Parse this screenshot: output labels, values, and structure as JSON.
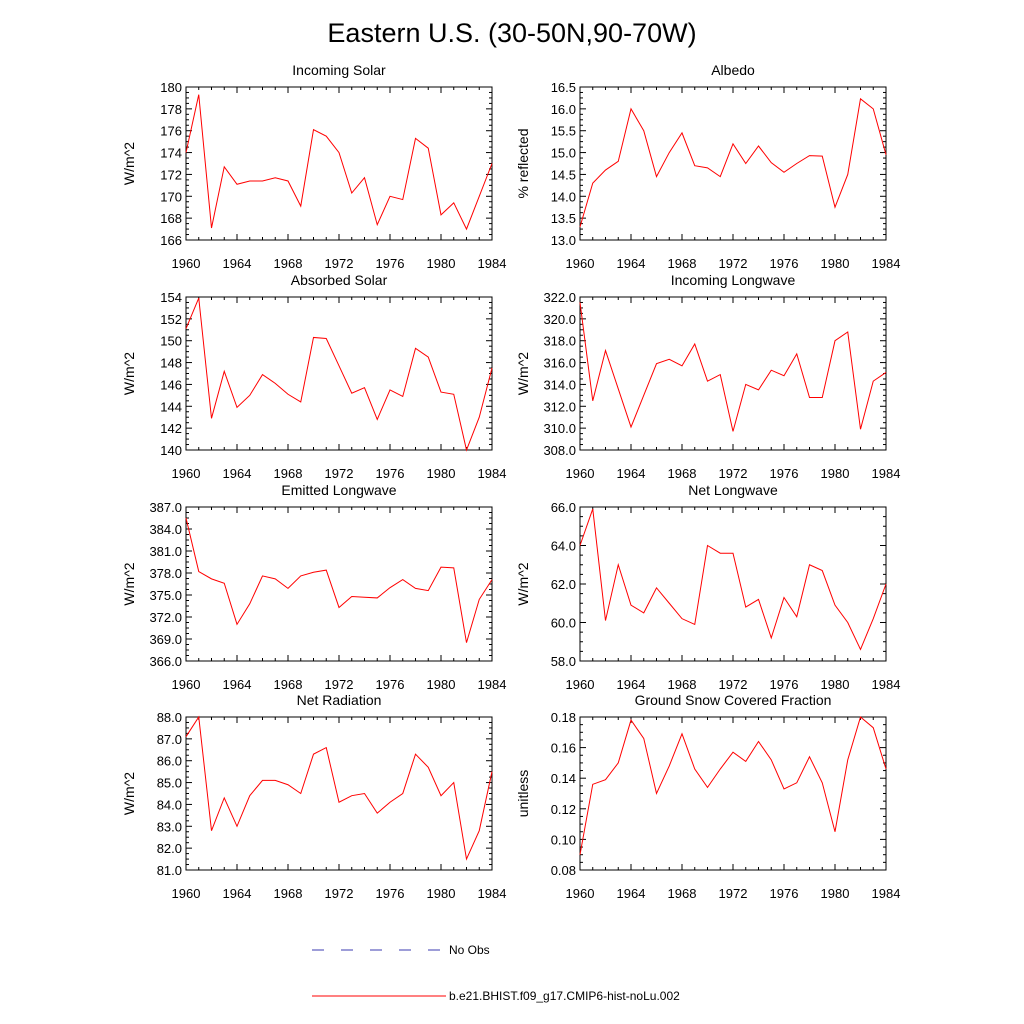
{
  "figure": {
    "title": "Eastern U.S. (30-50N,90-70W)"
  },
  "legend": [
    {
      "label": "No Obs",
      "color": "#3b3bb0",
      "dash": "dashed"
    },
    {
      "label": "b.e21.BHIST.f09_g17.CMIP6-hist-noLu.002",
      "color": "#ff0000",
      "dash": "solid"
    }
  ],
  "chart_data": [
    {
      "type": "line",
      "title": "Incoming Solar",
      "ylabel": "W/m^2",
      "xlim": [
        1960,
        1984
      ],
      "ylim": [
        166,
        180
      ],
      "xticks": [
        1960,
        1964,
        1968,
        1972,
        1976,
        1980,
        1984
      ],
      "yticks": [
        "166",
        "168",
        "170",
        "172",
        "174",
        "176",
        "178",
        "180"
      ],
      "x": [
        1960,
        1961,
        1962,
        1963,
        1964,
        1965,
        1966,
        1967,
        1968,
        1969,
        1970,
        1971,
        1972,
        1973,
        1974,
        1975,
        1976,
        1977,
        1978,
        1979,
        1980,
        1981,
        1982,
        1983,
        1984
      ],
      "series": [
        {
          "color": "#ff0000",
          "values": [
            174.0,
            179.3,
            167.1,
            172.7,
            171.1,
            171.4,
            171.4,
            171.7,
            171.4,
            169.1,
            176.1,
            175.5,
            174.0,
            170.3,
            171.7,
            167.4,
            170.0,
            169.7,
            175.3,
            174.4,
            168.3,
            169.4,
            167.0,
            170.0,
            173.0
          ]
        }
      ]
    },
    {
      "type": "line",
      "title": "Albedo",
      "ylabel": "% reflected",
      "xlim": [
        1960,
        1984
      ],
      "ylim": [
        13.0,
        16.5
      ],
      "xticks": [
        1960,
        1964,
        1968,
        1972,
        1976,
        1980,
        1984
      ],
      "yticks": [
        "13.0",
        "13.5",
        "14.0",
        "14.5",
        "15.0",
        "15.5",
        "16.0",
        "16.5"
      ],
      "x": [
        1960,
        1961,
        1962,
        1963,
        1964,
        1965,
        1966,
        1967,
        1968,
        1969,
        1970,
        1971,
        1972,
        1973,
        1974,
        1975,
        1976,
        1977,
        1978,
        1979,
        1980,
        1981,
        1982,
        1983,
        1984
      ],
      "series": [
        {
          "color": "#ff0000",
          "values": [
            13.3,
            14.3,
            14.6,
            14.8,
            16.0,
            15.5,
            14.45,
            15.0,
            15.45,
            14.7,
            14.65,
            14.45,
            15.2,
            14.75,
            15.15,
            14.77,
            14.55,
            14.75,
            14.93,
            14.92,
            13.75,
            14.5,
            16.23,
            16.0,
            14.95
          ]
        }
      ]
    },
    {
      "type": "line",
      "title": "Absorbed Solar",
      "ylabel": "W/m^2",
      "xlim": [
        1960,
        1984
      ],
      "ylim": [
        140,
        154
      ],
      "xticks": [
        1960,
        1964,
        1968,
        1972,
        1976,
        1980,
        1984
      ],
      "yticks": [
        "140",
        "142",
        "144",
        "146",
        "148",
        "150",
        "152",
        "154"
      ],
      "x": [
        1960,
        1961,
        1962,
        1963,
        1964,
        1965,
        1966,
        1967,
        1968,
        1969,
        1970,
        1971,
        1972,
        1973,
        1974,
        1975,
        1976,
        1977,
        1978,
        1979,
        1980,
        1981,
        1982,
        1983,
        1984
      ],
      "series": [
        {
          "color": "#ff0000",
          "values": [
            151.1,
            153.9,
            142.9,
            147.2,
            143.9,
            145.0,
            146.9,
            146.1,
            145.1,
            144.4,
            150.3,
            150.2,
            147.7,
            145.2,
            145.7,
            142.8,
            145.5,
            144.9,
            149.3,
            148.5,
            145.3,
            145.1,
            140.0,
            143.0,
            147.5
          ]
        }
      ]
    },
    {
      "type": "line",
      "title": "Incoming Longwave",
      "ylabel": "W/m^2",
      "xlim": [
        1960,
        1984
      ],
      "ylim": [
        308.0,
        322.0
      ],
      "xticks": [
        1960,
        1964,
        1968,
        1972,
        1976,
        1980,
        1984
      ],
      "yticks": [
        "308.0",
        "310.0",
        "312.0",
        "314.0",
        "316.0",
        "318.0",
        "320.0",
        "322.0"
      ],
      "x": [
        1960,
        1961,
        1962,
        1963,
        1964,
        1965,
        1966,
        1967,
        1968,
        1969,
        1970,
        1971,
        1972,
        1973,
        1974,
        1975,
        1976,
        1977,
        1978,
        1979,
        1980,
        1981,
        1982,
        1983,
        1984
      ],
      "series": [
        {
          "color": "#ff0000",
          "values": [
            321.5,
            312.5,
            317.1,
            313.6,
            310.1,
            313.0,
            315.9,
            316.3,
            315.7,
            317.7,
            314.3,
            314.9,
            309.7,
            314.0,
            313.5,
            315.3,
            314.8,
            316.8,
            312.8,
            312.8,
            318.0,
            318.8,
            309.9,
            314.3,
            315.1
          ]
        }
      ]
    },
    {
      "type": "line",
      "title": "Emitted Longwave",
      "ylabel": "W/m^2",
      "xlim": [
        1960,
        1984
      ],
      "ylim": [
        366.0,
        387.0
      ],
      "xticks": [
        1960,
        1964,
        1968,
        1972,
        1976,
        1980,
        1984
      ],
      "yticks": [
        "366.0",
        "369.0",
        "372.0",
        "375.0",
        "378.0",
        "381.0",
        "384.0",
        "387.0"
      ],
      "x": [
        1960,
        1961,
        1962,
        1963,
        1964,
        1965,
        1966,
        1967,
        1968,
        1969,
        1970,
        1971,
        1972,
        1973,
        1974,
        1975,
        1976,
        1977,
        1978,
        1979,
        1980,
        1981,
        1982,
        1983,
        1984
      ],
      "series": [
        {
          "color": "#ff0000",
          "values": [
            385.5,
            378.2,
            377.2,
            376.6,
            371.0,
            373.8,
            377.6,
            377.2,
            375.9,
            377.6,
            378.1,
            378.4,
            373.3,
            374.8,
            374.7,
            374.6,
            376.0,
            377.1,
            375.9,
            375.6,
            378.8,
            378.7,
            368.5,
            374.4,
            377.1
          ]
        }
      ]
    },
    {
      "type": "line",
      "title": "Net Longwave",
      "ylabel": "W/m^2",
      "xlim": [
        1960,
        1984
      ],
      "ylim": [
        58.0,
        66.0
      ],
      "xticks": [
        1960,
        1964,
        1968,
        1972,
        1976,
        1980,
        1984
      ],
      "yticks": [
        "58.0",
        "60.0",
        "62.0",
        "64.0",
        "66.0"
      ],
      "x": [
        1960,
        1961,
        1962,
        1963,
        1964,
        1965,
        1966,
        1967,
        1968,
        1969,
        1970,
        1971,
        1972,
        1973,
        1974,
        1975,
        1976,
        1977,
        1978,
        1979,
        1980,
        1981,
        1982,
        1983,
        1984
      ],
      "series": [
        {
          "color": "#ff0000",
          "values": [
            64.0,
            65.9,
            60.1,
            63.0,
            60.9,
            60.5,
            61.8,
            61.0,
            60.2,
            59.9,
            64.0,
            63.6,
            63.6,
            60.8,
            61.2,
            59.2,
            61.3,
            60.3,
            63.0,
            62.7,
            60.9,
            60.0,
            58.6,
            60.2,
            62.0
          ]
        }
      ]
    },
    {
      "type": "line",
      "title": "Net Radiation",
      "ylabel": "W/m^2",
      "xlim": [
        1960,
        1984
      ],
      "ylim": [
        81.0,
        88.0
      ],
      "xticks": [
        1960,
        1964,
        1968,
        1972,
        1976,
        1980,
        1984
      ],
      "yticks": [
        "81.0",
        "82.0",
        "83.0",
        "84.0",
        "85.0",
        "86.0",
        "87.0",
        "88.0"
      ],
      "x": [
        1960,
        1961,
        1962,
        1963,
        1964,
        1965,
        1966,
        1967,
        1968,
        1969,
        1970,
        1971,
        1972,
        1973,
        1974,
        1975,
        1976,
        1977,
        1978,
        1979,
        1980,
        1981,
        1982,
        1983,
        1984
      ],
      "series": [
        {
          "color": "#ff0000",
          "values": [
            87.1,
            88.0,
            82.8,
            84.3,
            83.0,
            84.4,
            85.1,
            85.1,
            84.9,
            84.5,
            86.3,
            86.6,
            84.1,
            84.4,
            84.5,
            83.6,
            84.1,
            84.5,
            86.3,
            85.7,
            84.4,
            85.0,
            81.5,
            82.8,
            85.5
          ]
        }
      ]
    },
    {
      "type": "line",
      "title": "Ground Snow Covered Fraction",
      "ylabel": "unitless",
      "xlim": [
        1960,
        1984
      ],
      "ylim": [
        0.08,
        0.18
      ],
      "xticks": [
        1960,
        1964,
        1968,
        1972,
        1976,
        1980,
        1984
      ],
      "yticks": [
        "0.08",
        "0.10",
        "0.12",
        "0.14",
        "0.16",
        "0.18"
      ],
      "x": [
        1960,
        1961,
        1962,
        1963,
        1964,
        1965,
        1966,
        1967,
        1968,
        1969,
        1970,
        1971,
        1972,
        1973,
        1974,
        1975,
        1976,
        1977,
        1978,
        1979,
        1980,
        1981,
        1982,
        1983,
        1984
      ],
      "series": [
        {
          "color": "#ff0000",
          "values": [
            0.09,
            0.136,
            0.139,
            0.15,
            0.178,
            0.166,
            0.13,
            0.148,
            0.169,
            0.146,
            0.134,
            0.146,
            0.157,
            0.151,
            0.164,
            0.152,
            0.133,
            0.137,
            0.154,
            0.137,
            0.105,
            0.152,
            0.18,
            0.173,
            0.146
          ]
        }
      ]
    }
  ]
}
